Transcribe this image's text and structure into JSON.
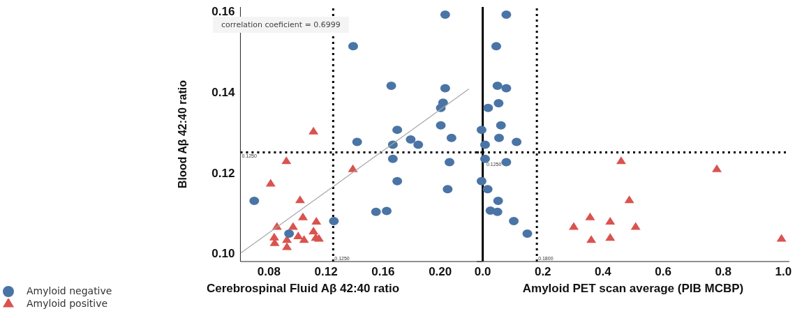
{
  "chart_data": [
    {
      "type": "scatter",
      "xlabel": "Cerebrospinal Fluid Aβ 42:40 ratio",
      "ylabel": "Blood Aβ 42:40 ratio",
      "xlim": [
        0.06,
        0.229
      ],
      "ylim": [
        0.098,
        0.161
      ],
      "xticks": [
        0.08,
        0.12,
        0.16,
        {
          "value": 0.2,
          "label": "0.20"
        }
      ],
      "yticks": [
        {
          "value": 0.1,
          "label": "0.10"
        },
        0.12,
        0.14,
        0.16
      ],
      "legend": "bottom left",
      "annotations": [
        "correlation coeficient = 0.6999"
      ],
      "ref_lines": [
        {
          "axis": "x",
          "value": 0.125,
          "label": "0.1250",
          "line_style": "dotted",
          "color": "#000000"
        },
        {
          "axis": "y",
          "value": 0.125,
          "label": "0.1250",
          "line_style": "dotted",
          "color": "#000000"
        }
      ],
      "series": [
        {
          "name": "Amyloid positive",
          "color": "#d9534f",
          "marker": "triangle",
          "x": [
            0.1112,
            0.0922,
            0.0812,
            0.1388,
            0.1018,
            0.0856,
            0.0969,
            0.1038,
            0.1132,
            0.1112,
            0.0837,
            0.084,
            0.0926,
            0.0926,
            0.1005,
            0.1046,
            0.1128,
            0.115
          ],
          "values": [
            0.1303,
            0.123,
            0.1174,
            0.121,
            0.1133,
            0.1067,
            0.1067,
            0.1091,
            0.108,
            0.1056,
            0.1041,
            0.1027,
            0.1035,
            0.1017,
            0.1044,
            0.1035,
            0.104,
            0.1038
          ]
        },
        {
          "name": "Amyloid negative",
          "color": "#4a74a5",
          "marker": "circle",
          "x": [
            0.2035,
            0.139,
            0.1657,
            0.2035,
            0.202,
            0.2004,
            0.2004,
            0.1699,
            0.2079,
            0.1793,
            0.1846,
            0.1418,
            0.1668,
            0.1668,
            0.2065,
            0.1699,
            0.2052,
            0.155,
            0.1625,
            0.1255,
            0.0697,
            0.0941
          ],
          "values": [
            0.1591,
            0.1513,
            0.1415,
            0.1409,
            0.1373,
            0.136,
            0.1317,
            0.1306,
            0.1286,
            0.1282,
            0.1269,
            0.1276,
            0.1269,
            0.1234,
            0.1226,
            0.1179,
            0.1159,
            0.1103,
            0.1105,
            0.108,
            0.113,
            0.1049
          ]
        },
        {
          "type": "line",
          "color": "#a6a6a6",
          "x": [
            0.0603,
            0.2201
          ],
          "values": [
            0.1001,
            0.1407
          ]
        }
      ]
    },
    {
      "type": "scatter",
      "xlabel": "Amyloid PET scan average (PIB MCBP)",
      "xlim": [
        -0.02,
        1.02
      ],
      "ylim": [
        0.098,
        0.161
      ],
      "xticks": [
        {
          "value": 0,
          "label": "0.0"
        },
        0.2,
        0.4,
        0.6,
        0.8,
        {
          "value": 1,
          "label": "1.0"
        }
      ],
      "tick_labels": "x",
      "ref_lines": [
        {
          "axis": "x",
          "value": 0,
          "line_style": "solid",
          "color": "#000000"
        },
        {
          "axis": "x",
          "value": 0.18,
          "label": "0.1800",
          "line_style": "dotted",
          "color": "#000000"
        },
        {
          "axis": "y",
          "value": 0.125,
          "label": "0.1250",
          "line_style": "dotted",
          "color": "#000000"
        }
      ],
      "series": [
        {
          "color": "#d9534f",
          "marker": "triangle",
          "x": [
            0.4603,
            0.7786,
            0.4875,
            0.3571,
            0.4239,
            0.3027,
            0.5085,
            0.361,
            0.4239,
            0.9936
          ],
          "values": [
            0.123,
            0.121,
            0.1133,
            0.1091,
            0.108,
            0.1067,
            0.1067,
            0.1035,
            0.104,
            0.1038
          ]
        },
        {
          "color": "#4a74a5",
          "marker": "circle",
          "x": [
            0.0784,
            0.045,
            0.0489,
            0.0784,
            0.0528,
            0.0179,
            0.0606,
            -0.0039,
            0.0543,
            0.1126,
            0.0078,
            0.0078,
            0.0784,
            -0.0039,
            0.0163,
            0.0512,
            0.0256,
            0.0489,
            0.1032,
            0.1483
          ],
          "values": [
            0.1591,
            0.1513,
            0.1415,
            0.1409,
            0.1372,
            0.136,
            0.1317,
            0.1306,
            0.1286,
            0.1276,
            0.1269,
            0.1234,
            0.1226,
            0.1179,
            0.1159,
            0.113,
            0.1106,
            0.1103,
            0.108,
            0.1049
          ]
        }
      ]
    }
  ]
}
